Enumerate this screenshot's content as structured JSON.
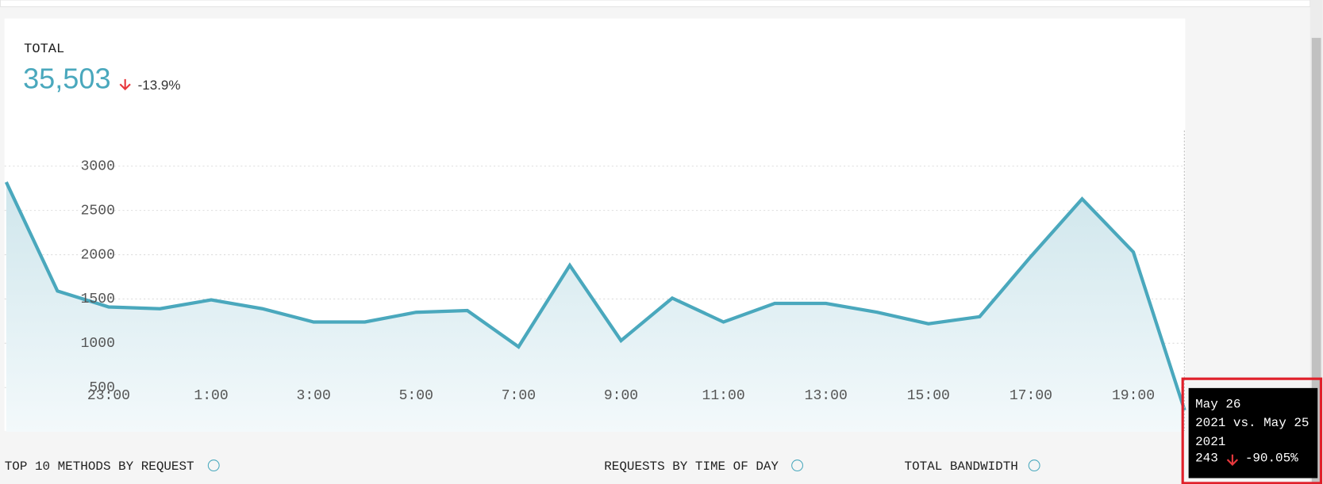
{
  "header": {
    "label": "TOTAL",
    "total": "35,503",
    "change": "-13.9%"
  },
  "chart_data": {
    "type": "area",
    "categories": [
      null,
      null,
      "23:00",
      null,
      "1:00",
      null,
      "3:00",
      null,
      "5:00",
      null,
      "7:00",
      null,
      "9:00",
      null,
      "11:00",
      null,
      "13:00",
      null,
      "15:00",
      null,
      "17:00",
      null,
      "19:00",
      null
    ],
    "values": [
      2820,
      1590,
      1410,
      1390,
      1490,
      1390,
      1240,
      1240,
      1350,
      1370,
      960,
      1880,
      1030,
      1510,
      1240,
      1450,
      1450,
      1350,
      1220,
      1300,
      1980,
      2630,
      2030,
      243
    ],
    "color": "#4aa8bd",
    "ylim": [
      0,
      3400
    ],
    "yticks": [
      500,
      1000,
      1500,
      2000,
      2500,
      3000
    ],
    "grid": true
  },
  "tooltip": {
    "title": "May 26 2021 vs. May 25 2021",
    "change": "-90.05%"
  },
  "sections": [
    "TOP 10 METHODS BY REQUEST",
    "REQUESTS BY TIME OF DAY",
    "TOTAL BANDWIDTH"
  ]
}
